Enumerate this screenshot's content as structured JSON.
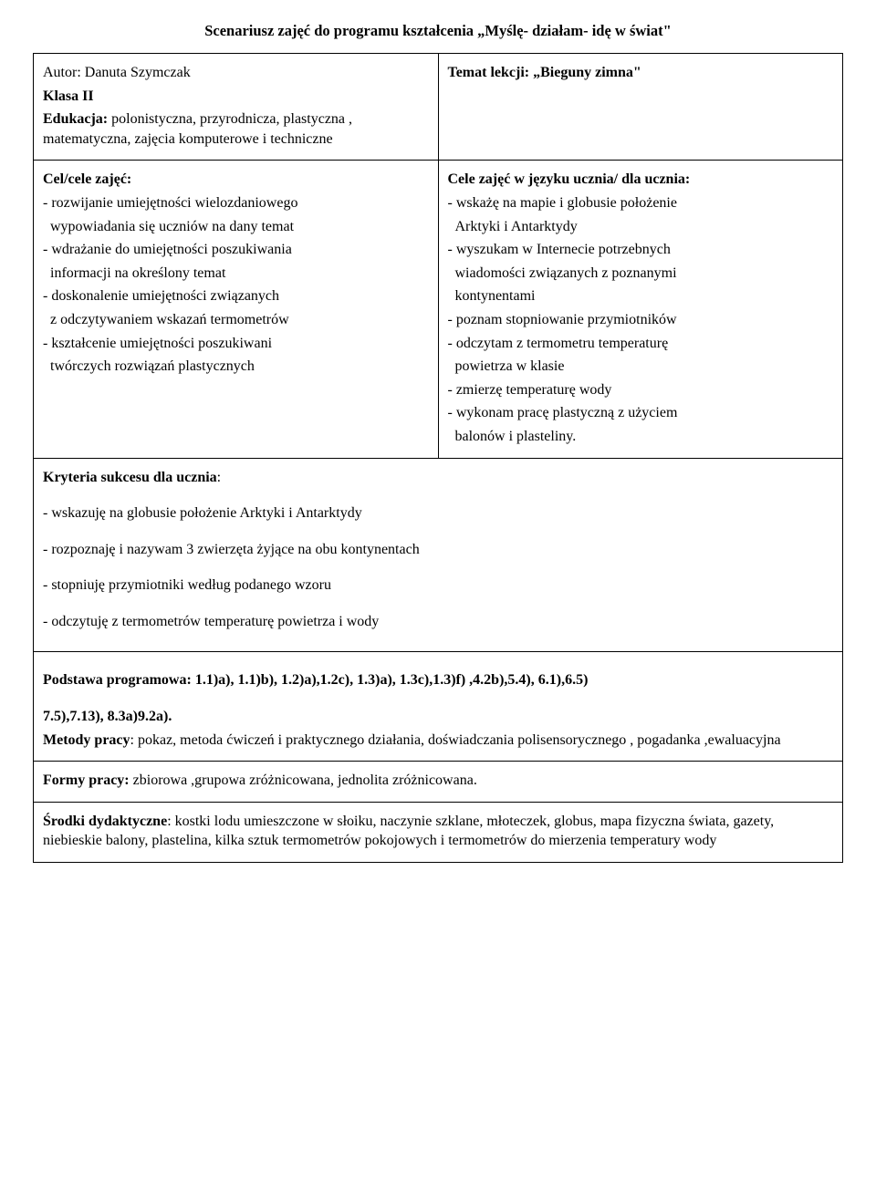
{
  "title": "Scenariusz zajęć do programu kształcenia „Myślę- działam- idę w świat\"",
  "row1_left": {
    "author_label": "Autor: Danuta Szymczak",
    "klasa_label": "Klasa II",
    "edukacja_label": "Edukacja:",
    "edukacja_text": " polonistyczna, przyrodnicza, plastyczna , matematyczna, zajęcia komputerowe i techniczne"
  },
  "row1_right": {
    "temat_label": "Temat lekcji: „Bieguny zimna\""
  },
  "row2_left": {
    "heading": "Cel/cele zajęć:",
    "items": [
      "- rozwijanie umiejętności wielozdaniowego",
      "  wypowiadania się uczniów na dany temat",
      "- wdrażanie do umiejętności poszukiwania",
      "  informacji na określony temat",
      "- doskonalenie umiejętności związanych",
      "  z odczytywaniem wskazań termometrów",
      "- kształcenie umiejętności  poszukiwani",
      "  twórczych rozwiązań plastycznych"
    ]
  },
  "row2_right": {
    "heading": "Cele zajęć w języku ucznia/ dla ucznia:",
    "items": [
      "- wskażę na mapie i globusie położenie",
      "  Arktyki i Antarktydy",
      "- wyszukam w Internecie potrzebnych",
      "  wiadomości  związanych z poznanymi",
      "  kontynentami",
      "- poznam stopniowanie przymiotników",
      "- odczytam  z termometru temperaturę",
      "  powietrza w klasie",
      "- zmierzę temperaturę wody",
      "- wykonam pracę plastyczną z użyciem",
      "  balonów i  plasteliny."
    ]
  },
  "row3": {
    "heading": "Kryteria sukcesu dla ucznia",
    "colon": ":",
    "items": [
      "- wskazuję na globusie położenie Arktyki i Antarktydy",
      "- rozpoznaję i nazywam  3 zwierzęta żyjące na obu kontynentach",
      "- stopniuję przymiotniki według podanego wzoru",
      "- odczytuję z termometrów temperaturę powietrza i wody"
    ]
  },
  "row4": {
    "podstawa_label": "Podstawa programowa:  ",
    "podstawa_text": "1.1)a), 1.1)b), 1.2)a),1.2c), 1.3)a), 1.3c),1.3)f) ,4.2b),5.4), 6.1),6.5)",
    "podstawa_line2": "7.5),7.13), 8.3a)9.2a).",
    "metody_label": "Metody pracy",
    "metody_text": ": pokaz, metoda ćwiczeń i praktycznego działania,  doświadczania polisensorycznego ,  pogadanka ,ewaluacyjna"
  },
  "row5": {
    "formy_label": "Formy pracy:",
    "formy_text": " zbiorowa ,grupowa zróżnicowana, jednolita zróżnicowana."
  },
  "row6": {
    "srodki_label": "Środki dydaktyczne",
    "srodki_text": ": kostki lodu umieszczone w słoiku, naczynie szklane, młoteczek, globus, mapa fizyczna świata, gazety, niebieskie balony, plastelina, kilka sztuk termometrów pokojowych i termometrów do mierzenia temperatury wody"
  }
}
